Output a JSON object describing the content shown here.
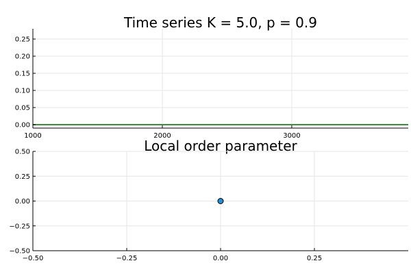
{
  "chart_data": [
    {
      "type": "line",
      "title": "Time series K = 5.0, p = 0.9",
      "xlabel": "",
      "ylabel": "",
      "xlim": [
        1000,
        3900
      ],
      "ylim": [
        -0.01,
        0.28
      ],
      "xticks": [
        1000,
        2000,
        3000
      ],
      "xtick_labels": [
        "1000",
        "2000",
        "3000"
      ],
      "yticks": [
        0.0,
        0.05,
        0.1,
        0.15,
        0.2,
        0.25
      ],
      "ytick_labels": [
        "0.00",
        "0.05",
        "0.10",
        "0.15",
        "0.20",
        "0.25"
      ],
      "grid": true,
      "legend": "none",
      "series": [
        {
          "color": "#3b8f3b",
          "x": [
            1000,
            3900
          ],
          "y": [
            0.0,
            0.0
          ]
        }
      ]
    },
    {
      "type": "scatter",
      "title": "Local order parameter",
      "xlabel": "",
      "ylabel": "",
      "xlim": [
        -0.5,
        0.5
      ],
      "ylim": [
        -0.5,
        0.5
      ],
      "xticks": [
        -0.5,
        -0.25,
        0.0,
        0.25
      ],
      "xtick_labels": [
        "−0.50",
        "−0.25",
        "0.00",
        "0.25"
      ],
      "yticks": [
        -0.5,
        -0.25,
        0.0,
        0.25,
        0.5
      ],
      "ytick_labels": [
        "−0.50",
        "−0.25",
        "0.00",
        "0.25",
        "0.50"
      ],
      "grid": true,
      "legend": "none",
      "series": [
        {
          "color": "#1f8fd6",
          "x": [
            0.0
          ],
          "y": [
            0.0
          ]
        }
      ]
    }
  ]
}
